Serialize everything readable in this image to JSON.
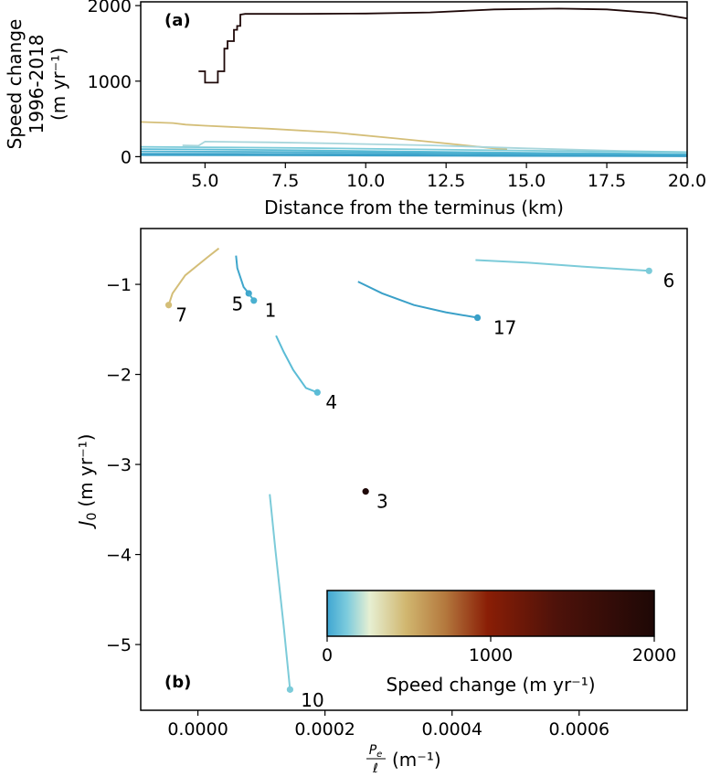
{
  "chart_data": [
    {
      "type": "line",
      "panel_label": "(a)",
      "xlabel": "Distance from the terminus (km)",
      "ylabel_lines": [
        "Speed change",
        "1996-2018",
        "(m yr⁻¹)"
      ],
      "xlim": [
        3.0,
        20.0
      ],
      "ylim": [
        -80,
        2050
      ],
      "xticks": [
        5.0,
        7.5,
        10.0,
        12.5,
        15.0,
        17.5,
        20.0
      ],
      "xtick_labels": [
        "5.0",
        "7.5",
        "10.0",
        "12.5",
        "15.0",
        "17.5",
        "20.0"
      ],
      "yticks": [
        0,
        1000,
        2000
      ],
      "ytick_labels": [
        "0",
        "1000",
        "2000"
      ],
      "series": [
        {
          "glacier": "3",
          "color": "#1e0808",
          "x": [
            4.8,
            5.0,
            5.0,
            5.4,
            5.4,
            5.6,
            5.6,
            5.7,
            5.7,
            5.9,
            5.9,
            6.0,
            6.0,
            6.1,
            6.1,
            6.25,
            8,
            10,
            12,
            14,
            16,
            17.5,
            19,
            20
          ],
          "y": [
            1130,
            1130,
            980,
            980,
            1130,
            1130,
            1430,
            1430,
            1530,
            1530,
            1680,
            1680,
            1730,
            1730,
            1880,
            1890,
            1890,
            1895,
            1910,
            1950,
            1960,
            1950,
            1900,
            1830
          ]
        },
        {
          "glacier": "7",
          "color": "#d4be78",
          "x": [
            3.0,
            4.0,
            4.4,
            5.0,
            7.0,
            9.0,
            11.0,
            12.5,
            14.0,
            14.4
          ],
          "y": [
            460,
            445,
            425,
            410,
            370,
            320,
            240,
            175,
            110,
            95
          ]
        },
        {
          "glacier": "6",
          "color": "#a8d6dc",
          "x": [
            4.3,
            4.8,
            5.0,
            7.0,
            9.0,
            12.0,
            15.0,
            18.0,
            20.0
          ],
          "y": [
            150,
            145,
            200,
            190,
            175,
            150,
            110,
            75,
            60
          ]
        },
        {
          "glacier": "17",
          "color": "#7ccbd9",
          "x": [
            3.0,
            5.0,
            8.0,
            11.0,
            14.0,
            17.0,
            20.0
          ],
          "y": [
            130,
            125,
            115,
            100,
            85,
            70,
            60
          ]
        },
        {
          "glacier": "1",
          "color": "#5bbcd6",
          "x": [
            3.0,
            5.0,
            8.0,
            11.0,
            14.0,
            17.0,
            20.0
          ],
          "y": [
            100,
            95,
            85,
            70,
            55,
            45,
            35
          ]
        },
        {
          "glacier": "10",
          "color": "#4ab0d0",
          "x": [
            3.0,
            6.0,
            10.0,
            14.0,
            17.0,
            20.0
          ],
          "y": [
            70,
            65,
            55,
            45,
            35,
            25
          ]
        },
        {
          "glacier": "4",
          "color": "#3fa6cc",
          "x": [
            3.0,
            6.0,
            10.0,
            14.0,
            17.0,
            20.0
          ],
          "y": [
            40,
            38,
            32,
            25,
            20,
            15
          ]
        },
        {
          "glacier": "5",
          "color": "#3aa0c8",
          "x": [
            3.0,
            6.0,
            10.0,
            14.0,
            17.0,
            20.0
          ],
          "y": [
            20,
            18,
            15,
            10,
            8,
            5
          ]
        }
      ]
    },
    {
      "type": "line",
      "panel_label": "(b)",
      "xlabel_frac_num": "P",
      "xlabel_frac_num_sub": "e",
      "xlabel_frac_den": "ℓ",
      "xlabel_unit": "(m⁻¹)",
      "ylabel_main": "J",
      "ylabel_sub": "0",
      "ylabel_unit": "(m yr⁻¹)",
      "xlim": [
        -9e-05,
        0.00077
      ],
      "ylim": [
        -5.73,
        -0.38
      ],
      "xticks": [
        0.0,
        0.0002,
        0.0004,
        0.0006
      ],
      "xtick_labels": [
        "0.0000",
        "0.0002",
        "0.0004",
        "0.0006"
      ],
      "yticks": [
        -1,
        -2,
        -3,
        -4,
        -5
      ],
      "ytick_labels": [
        "−1",
        "−2",
        "−3",
        "−4",
        "−5"
      ],
      "colorbar": {
        "label": "Speed change (m yr⁻¹)",
        "range": [
          0,
          2000
        ],
        "ticks": [
          0,
          1000,
          2000
        ],
        "tick_labels": [
          "0",
          "1000",
          "2000"
        ],
        "stops": [
          {
            "offset": 0.0,
            "color": "#3fa6d2"
          },
          {
            "offset": 0.06,
            "color": "#7ccbdd"
          },
          {
            "offset": 0.13,
            "color": "#e6efd2"
          },
          {
            "offset": 0.24,
            "color": "#d1b770"
          },
          {
            "offset": 0.36,
            "color": "#b4793e"
          },
          {
            "offset": 0.49,
            "color": "#8a1e06"
          },
          {
            "offset": 0.7,
            "color": "#4e120a"
          },
          {
            "offset": 1.0,
            "color": "#1e0806"
          }
        ]
      },
      "series": [
        {
          "name": "7",
          "color": "#d4be78",
          "x": [
            3.3e-05,
            1.5e-05,
            -2e-05,
            -4e-05,
            -4.6e-05
          ],
          "y": [
            -0.6,
            -0.7,
            -0.9,
            -1.1,
            -1.23
          ],
          "label_dx": 1.1e-05,
          "label_dy": -0.11
        },
        {
          "name": "5",
          "color": "#3fa6cc",
          "x": [
            6e-05,
            6.2e-05,
            7.2e-05,
            8e-05
          ],
          "y": [
            -0.68,
            -0.82,
            -1.03,
            -1.1
          ],
          "label_dx": 0.0,
          "label_dy": -0.12
        },
        {
          "name": "1",
          "color": "#4ab0d0",
          "x": [
            8e-05,
            8.8e-05
          ],
          "y": [
            -1.1,
            -1.18
          ],
          "label_dx": 1.7e-05,
          "label_dy": -0.11
        },
        {
          "name": "17",
          "color": "#3aa0c8",
          "x": [
            0.000252,
            0.00029,
            0.00034,
            0.00039,
            0.00044
          ],
          "y": [
            -0.97,
            -1.1,
            -1.23,
            -1.31,
            -1.37
          ],
          "label_dx": 2.5e-05,
          "label_dy": -0.11
        },
        {
          "name": "6",
          "color": "#7ccbd9",
          "x": [
            0.000437,
            0.00052,
            0.0006,
            0.00071
          ],
          "y": [
            -0.73,
            -0.76,
            -0.8,
            -0.85
          ],
          "label_dx": 2.2e-05,
          "label_dy": -0.11
        },
        {
          "name": "4",
          "color": "#5bbcd6",
          "x": [
            0.000123,
            0.000135,
            0.00015,
            0.00017,
            0.000188
          ],
          "y": [
            -1.57,
            -1.75,
            -1.95,
            -2.15,
            -2.2
          ],
          "label_dx": 1.3e-05,
          "label_dy": -0.11
        },
        {
          "name": "3",
          "color": "#1e0808",
          "x": [
            0.000264
          ],
          "y": [
            -3.3
          ],
          "label_dx": 1.7e-05,
          "label_dy": -0.11
        },
        {
          "name": "10",
          "color": "#7ccbd9",
          "x": [
            0.000113,
            0.000122,
            0.000135,
            0.000145
          ],
          "y": [
            -3.33,
            -3.95,
            -4.8,
            -5.5
          ],
          "label_dx": 1.7e-05,
          "label_dy": -0.12
        }
      ]
    }
  ]
}
